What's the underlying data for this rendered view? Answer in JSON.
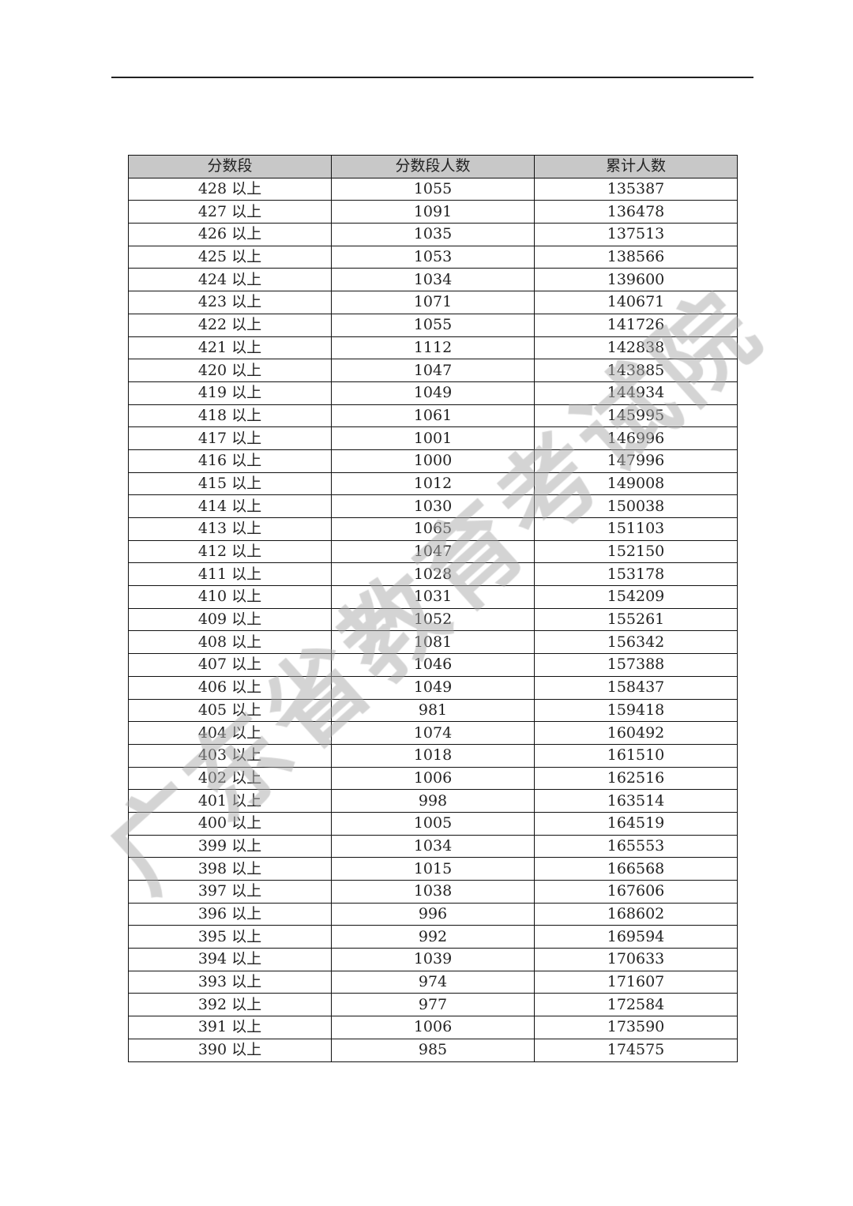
{
  "headers": [
    "分数段",
    "分数段人数",
    "累计人数"
  ],
  "watermark": "广东省教育考试院",
  "rows": [
    [
      "428 以上",
      "1055",
      "135387"
    ],
    [
      "427 以上",
      "1091",
      "136478"
    ],
    [
      "426 以上",
      "1035",
      "137513"
    ],
    [
      "425 以上",
      "1053",
      "138566"
    ],
    [
      "424 以上",
      "1034",
      "139600"
    ],
    [
      "423 以上",
      "1071",
      "140671"
    ],
    [
      "422 以上",
      "1055",
      "141726"
    ],
    [
      "421 以上",
      "1112",
      "142838"
    ],
    [
      "420 以上",
      "1047",
      "143885"
    ],
    [
      "419 以上",
      "1049",
      "144934"
    ],
    [
      "418 以上",
      "1061",
      "145995"
    ],
    [
      "417 以上",
      "1001",
      "146996"
    ],
    [
      "416 以上",
      "1000",
      "147996"
    ],
    [
      "415 以上",
      "1012",
      "149008"
    ],
    [
      "414 以上",
      "1030",
      "150038"
    ],
    [
      "413 以上",
      "1065",
      "151103"
    ],
    [
      "412 以上",
      "1047",
      "152150"
    ],
    [
      "411 以上",
      "1028",
      "153178"
    ],
    [
      "410 以上",
      "1031",
      "154209"
    ],
    [
      "409 以上",
      "1052",
      "155261"
    ],
    [
      "408 以上",
      "1081",
      "156342"
    ],
    [
      "407 以上",
      "1046",
      "157388"
    ],
    [
      "406 以上",
      "1049",
      "158437"
    ],
    [
      "405 以上",
      "981",
      "159418"
    ],
    [
      "404 以上",
      "1074",
      "160492"
    ],
    [
      "403 以上",
      "1018",
      "161510"
    ],
    [
      "402 以上",
      "1006",
      "162516"
    ],
    [
      "401 以上",
      "998",
      "163514"
    ],
    [
      "400 以上",
      "1005",
      "164519"
    ],
    [
      "399 以上",
      "1034",
      "165553"
    ],
    [
      "398 以上",
      "1015",
      "166568"
    ],
    [
      "397 以上",
      "1038",
      "167606"
    ],
    [
      "396 以上",
      "996",
      "168602"
    ],
    [
      "395 以上",
      "992",
      "169594"
    ],
    [
      "394 以上",
      "1039",
      "170633"
    ],
    [
      "393 以上",
      "974",
      "171607"
    ],
    [
      "392 以上",
      "977",
      "172584"
    ],
    [
      "391 以上",
      "1006",
      "173590"
    ],
    [
      "390 以上",
      "985",
      "174575"
    ]
  ]
}
